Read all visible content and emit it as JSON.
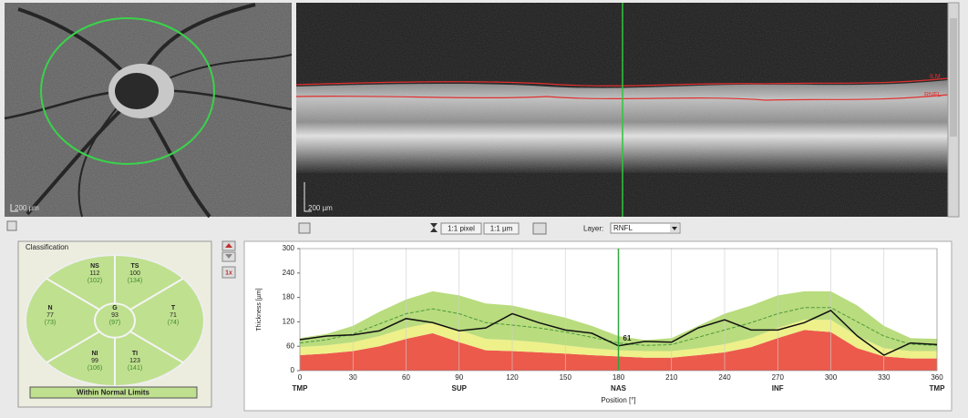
{
  "images": {
    "fundus_scale": "200 µm",
    "oct_scale": "200 µm",
    "ilm": "ILM",
    "rnfl": "RNFL"
  },
  "toolbar": {
    "pixel": "1:1 pixel",
    "um": "1:1 µm",
    "layer_label": "Layer:",
    "layer": "RNFL",
    "zoom": "1x"
  },
  "classification": {
    "title": "Classification",
    "color": "#bfe08f",
    "sectors": [
      {
        "label": "NS",
        "value": 112,
        "normal": "(102)"
      },
      {
        "label": "TS",
        "value": 100,
        "normal": "(134)"
      },
      {
        "label": "N",
        "value": 77,
        "normal": "(73)"
      },
      {
        "label": "G",
        "value": 93,
        "normal": "(97)"
      },
      {
        "label": "T",
        "value": 71,
        "normal": "(74)"
      },
      {
        "label": "NI",
        "value": 99,
        "normal": "(106)"
      },
      {
        "label": "TI",
        "value": 123,
        "normal": "(141)"
      }
    ],
    "result": "Within Normal Limits"
  },
  "chart_data": {
    "type": "line",
    "ylabel": "Thickness [µm]",
    "xlabel": "Position [°]",
    "xlim": [
      0,
      360
    ],
    "xticks": [
      0,
      30,
      60,
      90,
      120,
      150,
      180,
      210,
      240,
      270,
      300,
      330,
      360
    ],
    "ylim": [
      0,
      300
    ],
    "yticks": [
      0,
      60,
      120,
      180,
      240,
      300
    ],
    "position_labels": [
      {
        "value": 0,
        "label": "TMP"
      },
      {
        "value": 90,
        "label": "SUP"
      },
      {
        "value": 180,
        "label": "NAS"
      },
      {
        "value": 270,
        "label": "INF"
      },
      {
        "value": 360,
        "label": "TMP"
      }
    ],
    "grid": true,
    "x": [
      0,
      15,
      30,
      45,
      60,
      75,
      90,
      105,
      120,
      135,
      150,
      165,
      180,
      195,
      210,
      225,
      240,
      255,
      270,
      285,
      300,
      315,
      330,
      345,
      360
    ],
    "bands": [
      {
        "color": "#ec5a4c",
        "values": [
          38,
          42,
          48,
          60,
          78,
          92,
          70,
          50,
          48,
          45,
          42,
          38,
          35,
          32,
          32,
          38,
          45,
          58,
          80,
          100,
          95,
          55,
          35,
          30,
          30
        ]
      },
      {
        "color": "#eef08a",
        "values": [
          58,
          62,
          70,
          85,
          105,
          118,
          100,
          78,
          75,
          70,
          62,
          55,
          50,
          48,
          48,
          55,
          65,
          80,
          105,
          125,
          125,
          85,
          55,
          48,
          48
        ]
      },
      {
        "color": "#b9dc7e",
        "values": [
          80,
          90,
          110,
          145,
          175,
          195,
          185,
          165,
          160,
          145,
          130,
          110,
          85,
          75,
          80,
          110,
          140,
          160,
          185,
          195,
          195,
          160,
          110,
          80,
          78
        ]
      }
    ],
    "series": [
      {
        "color": "#4c9a3c",
        "dashed": true,
        "values": [
          68,
          76,
          90,
          115,
          140,
          152,
          140,
          118,
          112,
          105,
          95,
          82,
          68,
          62,
          64,
          82,
          100,
          118,
          140,
          155,
          155,
          120,
          85,
          65,
          62
        ]
      },
      {
        "color": "#111111",
        "dashed": false,
        "values": [
          76,
          85,
          88,
          98,
          128,
          118,
          98,
          105,
          140,
          118,
          100,
          92,
          61,
          72,
          70,
          105,
          125,
          100,
          100,
          118,
          148,
          85,
          38,
          68,
          64
        ]
      }
    ],
    "cursor": {
      "x": 180,
      "value": 61,
      "color": "#2fa83a"
    }
  }
}
